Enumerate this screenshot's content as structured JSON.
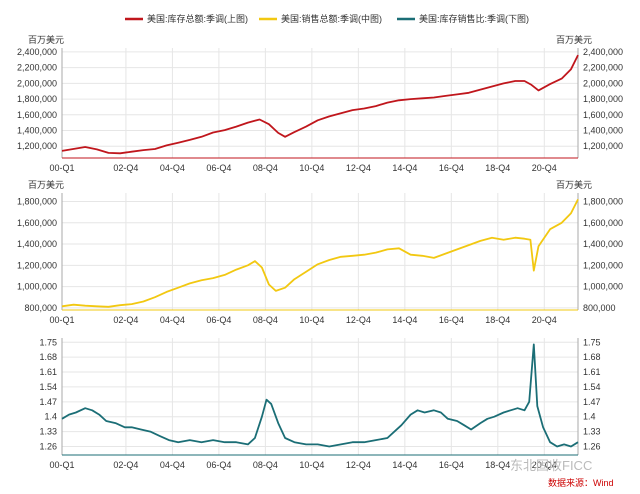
{
  "chart_data": {
    "type": "line",
    "legend": {
      "placement": "top",
      "items": [
        {
          "label": "美国:库存总额:季调(上图)",
          "color": "#c0161c"
        },
        {
          "label": "美国:销售总额:季调(中图)",
          "color": "#f2c811"
        },
        {
          "label": "美国:库存销售比:季调(下图)",
          "color": "#1b6e76"
        }
      ]
    },
    "x_tick_labels": [
      "00-Q1",
      "02-Q4",
      "04-Q4",
      "06-Q4",
      "08-Q4",
      "10-Q4",
      "12-Q4",
      "14-Q4",
      "16-Q4",
      "18-Q4",
      "20-Q4"
    ],
    "x_range": [
      2000.0,
      2022.2
    ],
    "grid": true,
    "source": "数据来源：Wind",
    "watermark": "东北固收FICC",
    "panels": [
      {
        "name": "美国:库存总额:季调",
        "unit_left": "百万美元",
        "unit_right": "百万美元",
        "ylim": [
          1050000,
          2450000
        ],
        "y_ticks": [
          1200000,
          1400000,
          1600000,
          1800000,
          2000000,
          2200000,
          2400000
        ],
        "y_tick_labels": [
          "1,200,000",
          "1,400,000",
          "1,600,000",
          "1,800,000",
          "2,000,000",
          "2,200,000",
          "2,400,000"
        ],
        "color": "#c0161c",
        "x": [
          2000.0,
          2001.0,
          2001.5,
          2002.0,
          2002.5,
          2003.0,
          2003.5,
          2004.0,
          2004.5,
          2005.0,
          2005.5,
          2006.0,
          2006.5,
          2007.0,
          2007.5,
          2008.0,
          2008.5,
          2008.9,
          2009.3,
          2009.6,
          2010.0,
          2010.5,
          2011.0,
          2011.5,
          2012.0,
          2012.5,
          2013.0,
          2013.5,
          2014.0,
          2014.5,
          2015.0,
          2015.5,
          2016.0,
          2016.5,
          2017.0,
          2017.5,
          2018.0,
          2018.5,
          2019.0,
          2019.5,
          2019.9,
          2020.2,
          2020.5,
          2021.0,
          2021.5,
          2021.9,
          2022.2
        ],
        "values": [
          1140000,
          1190000,
          1160000,
          1115000,
          1110000,
          1130000,
          1150000,
          1165000,
          1210000,
          1245000,
          1280000,
          1320000,
          1375000,
          1405000,
          1450000,
          1500000,
          1540000,
          1480000,
          1370000,
          1320000,
          1380000,
          1450000,
          1530000,
          1580000,
          1620000,
          1660000,
          1680000,
          1710000,
          1755000,
          1785000,
          1800000,
          1810000,
          1820000,
          1840000,
          1860000,
          1880000,
          1920000,
          1960000,
          2000000,
          2030000,
          2030000,
          1980000,
          1910000,
          1990000,
          2060000,
          2180000,
          2360000
        ]
      },
      {
        "name": "美国:销售总额:季调",
        "unit_left": "百万美元",
        "unit_right": "百万美元",
        "ylim": [
          780000,
          1880000
        ],
        "y_ticks": [
          800000,
          1000000,
          1200000,
          1400000,
          1600000,
          1800000
        ],
        "y_tick_labels": [
          "800,000",
          "1,000,000",
          "1,200,000",
          "1,400,000",
          "1,600,000",
          "1,800,000"
        ],
        "color": "#f2c811",
        "x": [
          2000.0,
          2000.5,
          2001.0,
          2001.5,
          2002.0,
          2002.5,
          2003.0,
          2003.5,
          2004.0,
          2004.5,
          2005.0,
          2005.5,
          2006.0,
          2006.5,
          2007.0,
          2007.5,
          2008.0,
          2008.3,
          2008.6,
          2008.9,
          2009.2,
          2009.6,
          2010.0,
          2010.5,
          2011.0,
          2011.5,
          2012.0,
          2012.5,
          2013.0,
          2013.5,
          2014.0,
          2014.5,
          2015.0,
          2015.5,
          2016.0,
          2016.5,
          2017.0,
          2017.5,
          2018.0,
          2018.5,
          2019.0,
          2019.5,
          2019.9,
          2020.15,
          2020.3,
          2020.5,
          2021.0,
          2021.5,
          2021.9,
          2022.2
        ],
        "values": [
          815000,
          830000,
          820000,
          815000,
          810000,
          825000,
          835000,
          860000,
          900000,
          950000,
          990000,
          1030000,
          1060000,
          1080000,
          1110000,
          1160000,
          1200000,
          1240000,
          1180000,
          1020000,
          960000,
          990000,
          1070000,
          1140000,
          1210000,
          1250000,
          1280000,
          1290000,
          1300000,
          1320000,
          1350000,
          1360000,
          1300000,
          1290000,
          1270000,
          1310000,
          1350000,
          1390000,
          1430000,
          1460000,
          1440000,
          1460000,
          1450000,
          1440000,
          1150000,
          1380000,
          1540000,
          1600000,
          1690000,
          1820000
        ]
      },
      {
        "name": "美国:库存销售比:季调",
        "ylim": [
          1.22,
          1.77
        ],
        "y_ticks": [
          1.26,
          1.33,
          1.4,
          1.47,
          1.54,
          1.61,
          1.68,
          1.75
        ],
        "y_tick_labels": [
          "1.26",
          "1.33",
          "1.4",
          "1.47",
          "1.54",
          "1.61",
          "1.68",
          "1.75"
        ],
        "color": "#1b6e76",
        "x": [
          2000.0,
          2000.3,
          2000.6,
          2001.0,
          2001.3,
          2001.6,
          2001.9,
          2002.3,
          2002.7,
          2003.0,
          2003.4,
          2003.8,
          2004.2,
          2004.6,
          2005.0,
          2005.5,
          2006.0,
          2006.5,
          2007.0,
          2007.5,
          2008.0,
          2008.3,
          2008.6,
          2008.8,
          2009.0,
          2009.3,
          2009.6,
          2010.0,
          2010.5,
          2011.0,
          2011.5,
          2012.0,
          2012.5,
          2013.0,
          2013.5,
          2014.0,
          2014.3,
          2014.6,
          2015.0,
          2015.3,
          2015.6,
          2016.0,
          2016.3,
          2016.6,
          2017.0,
          2017.3,
          2017.6,
          2018.0,
          2018.3,
          2018.6,
          2019.0,
          2019.3,
          2019.6,
          2019.9,
          2020.1,
          2020.3,
          2020.45,
          2020.7,
          2021.0,
          2021.3,
          2021.6,
          2021.9,
          2022.2
        ],
        "values": [
          1.39,
          1.41,
          1.42,
          1.44,
          1.43,
          1.41,
          1.38,
          1.37,
          1.35,
          1.35,
          1.34,
          1.33,
          1.31,
          1.29,
          1.28,
          1.29,
          1.28,
          1.29,
          1.28,
          1.28,
          1.27,
          1.3,
          1.4,
          1.48,
          1.46,
          1.37,
          1.3,
          1.28,
          1.27,
          1.27,
          1.26,
          1.27,
          1.28,
          1.28,
          1.29,
          1.3,
          1.33,
          1.36,
          1.41,
          1.43,
          1.42,
          1.43,
          1.42,
          1.39,
          1.38,
          1.36,
          1.34,
          1.37,
          1.39,
          1.4,
          1.42,
          1.43,
          1.44,
          1.43,
          1.47,
          1.74,
          1.45,
          1.35,
          1.28,
          1.26,
          1.27,
          1.26,
          1.28
        ]
      }
    ]
  }
}
